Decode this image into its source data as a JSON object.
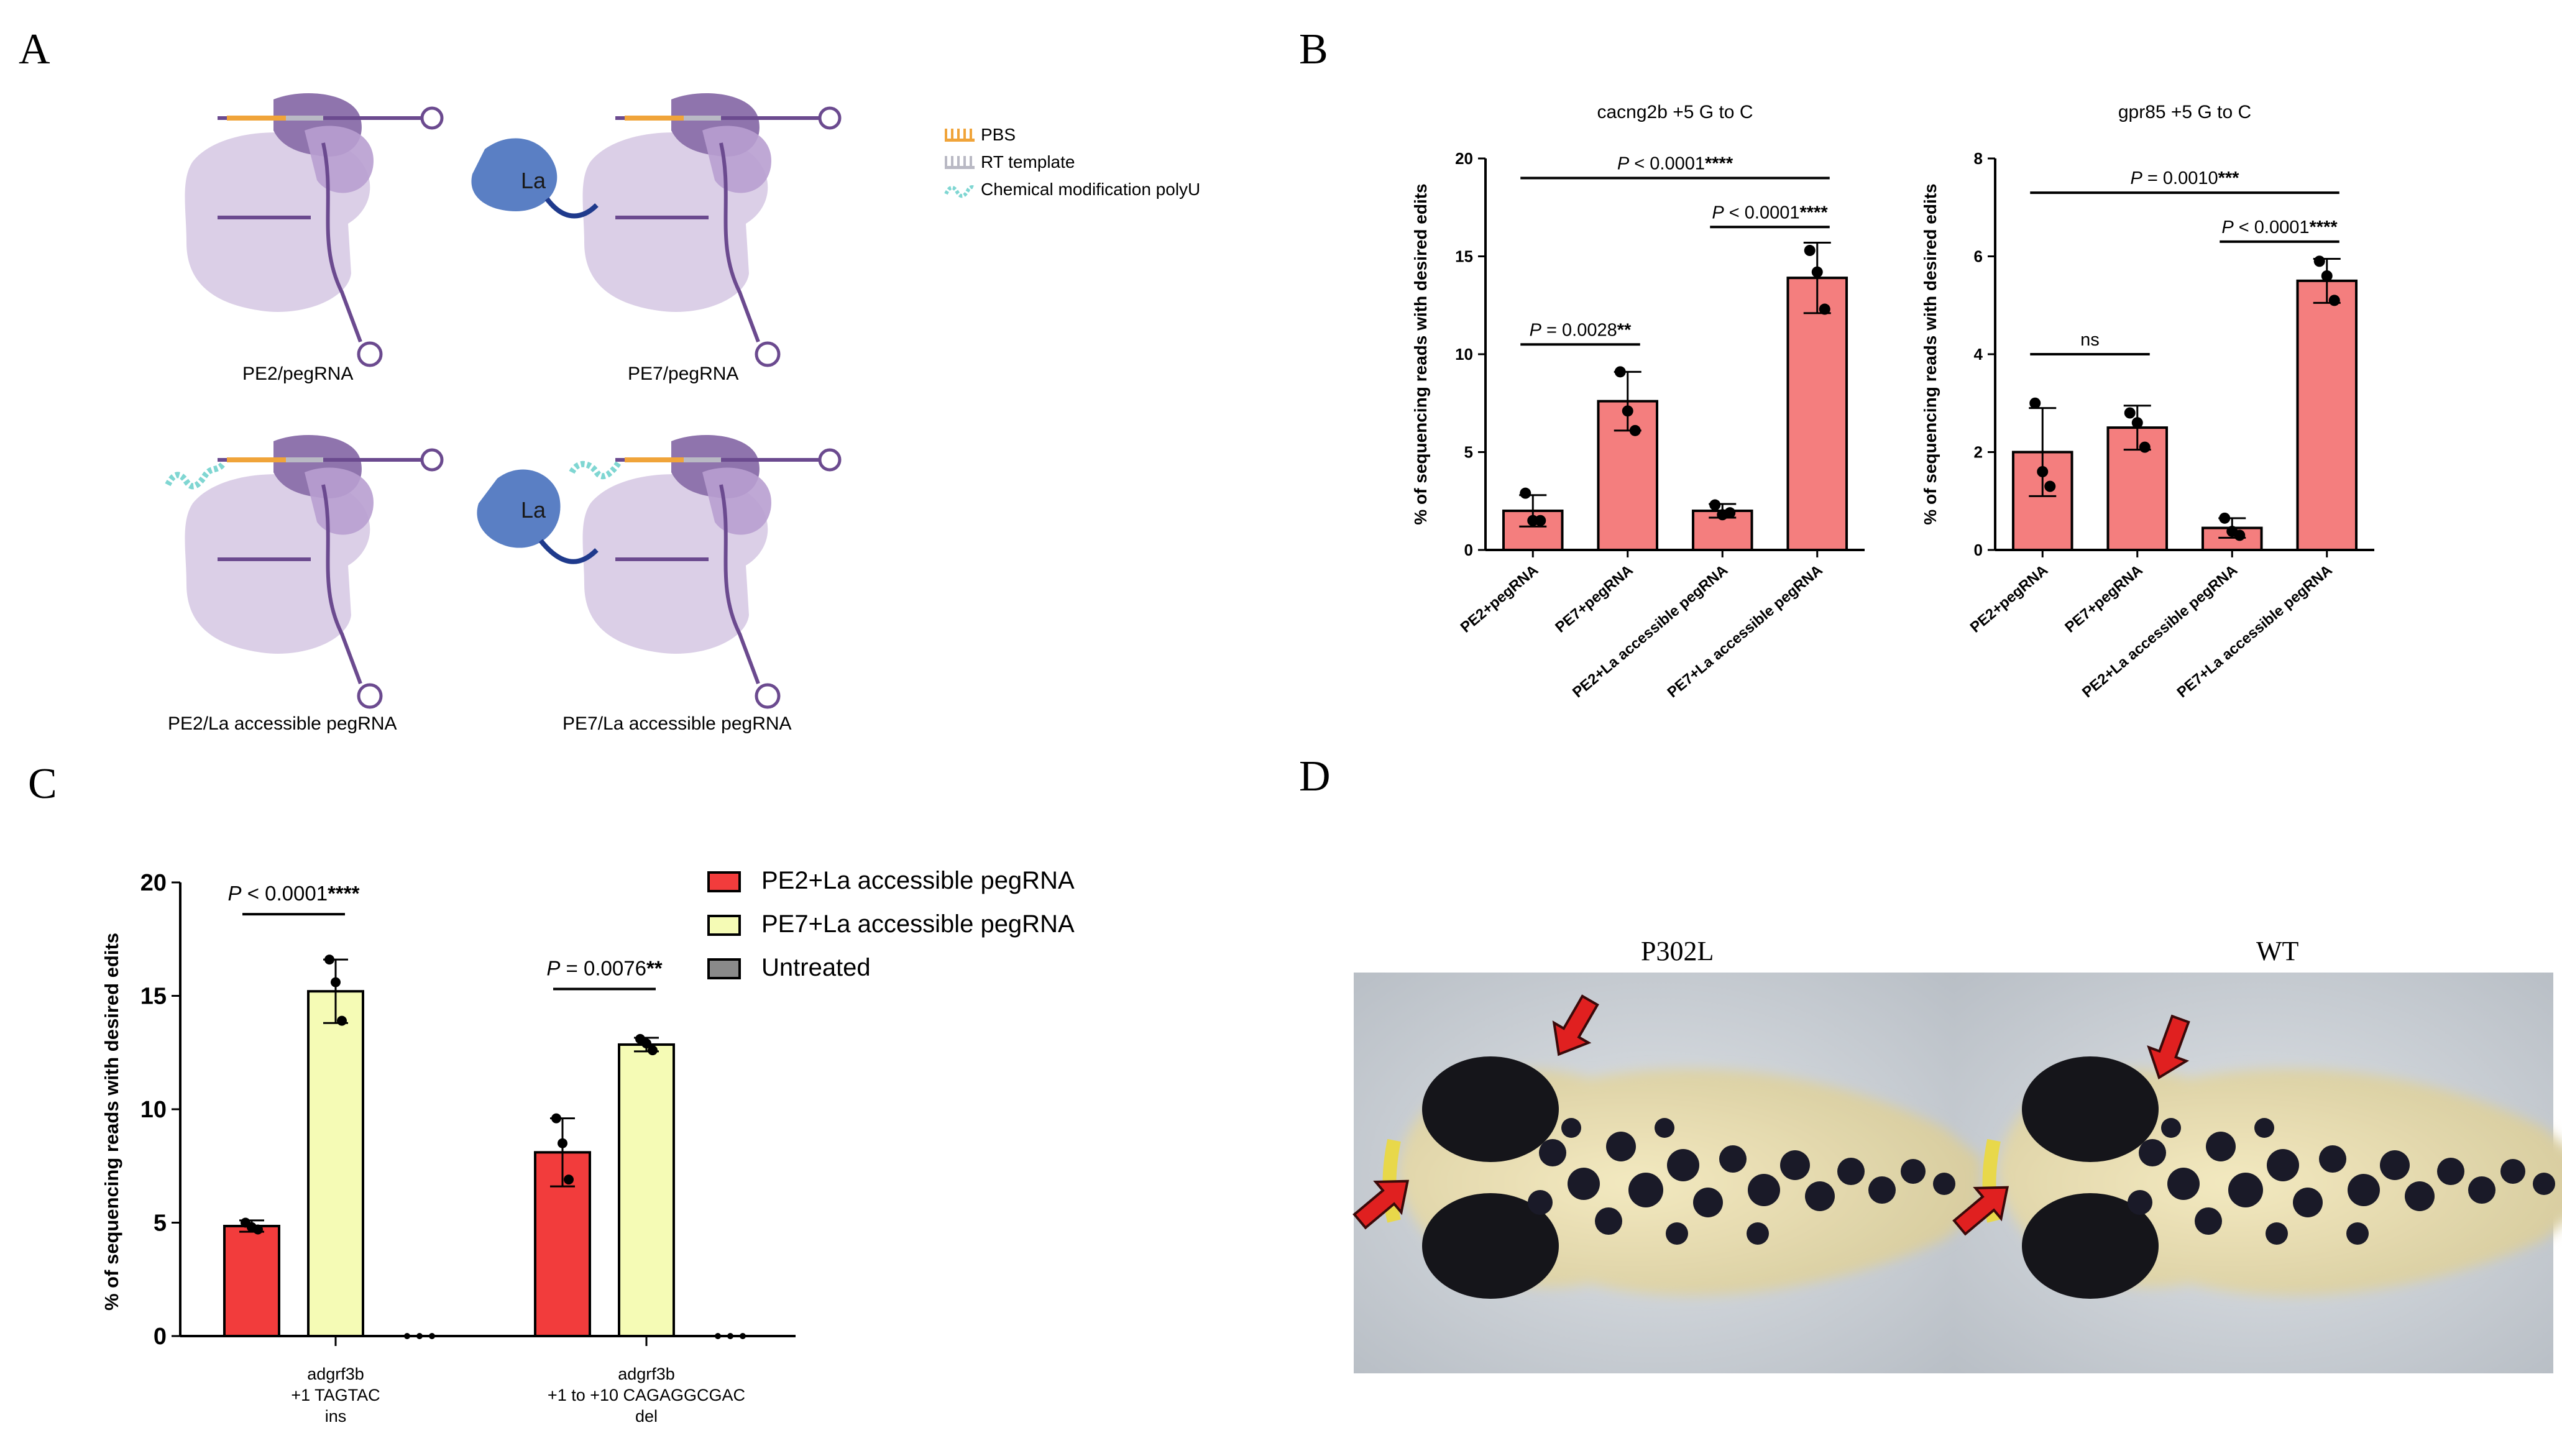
{
  "panels": {
    "A": {
      "letter": "A",
      "captions": [
        "PE2/pegRNA",
        "PE7/pegRNA",
        "PE2/La accessible pegRNA",
        "PE7/La accessible pegRNA"
      ],
      "protein_label": "La",
      "legend": [
        {
          "label": "PBS",
          "color": "#f0a43a"
        },
        {
          "label": "RT template",
          "color": "#b9b9c4"
        },
        {
          "label": "Chemical modification polyU",
          "color": "#7fd6d2"
        }
      ]
    },
    "B": {
      "letter": "B"
    },
    "C": {
      "letter": "C"
    },
    "D": {
      "letter": "D",
      "labels": [
        "P302L",
        "WT"
      ]
    }
  },
  "colors": {
    "bar_salmon": "#f47e7e",
    "bar_red": "#f23c3c",
    "bar_yellow": "#f5fbb5",
    "bar_grey": "#8a8a8a",
    "cas_purple": "#c9b6d9",
    "cas_dark": "#8f74ad",
    "la_blue": "#5a7fc4",
    "linker_navy": "#1f3a8c"
  },
  "chart_data": [
    {
      "type": "bar",
      "title": "cacng2b +5 G to C",
      "ylabel": "% of sequencing reads with desired edits",
      "categories": [
        "PE2+pegRNA",
        "PE7+pegRNA",
        "PE2+La accessible pegRNA",
        "PE7+La accessible pegRNA"
      ],
      "values": [
        2.0,
        7.6,
        2.0,
        13.9
      ],
      "errors": [
        0.8,
        1.5,
        0.35,
        1.8
      ],
      "points": [
        [
          2.9,
          1.5,
          1.5
        ],
        [
          9.1,
          7.1,
          6.1
        ],
        [
          2.3,
          1.8,
          1.9
        ],
        [
          15.3,
          14.2,
          12.3
        ]
      ],
      "ylim": [
        0,
        20
      ],
      "yticks": [
        0,
        5,
        10,
        15,
        20
      ],
      "brackets": [
        {
          "from": 0,
          "to": 1,
          "level": 10.5,
          "label_p": "P",
          "label_rest": " = 0.0028",
          "stars": "**"
        },
        {
          "from": 2,
          "to": 3,
          "level": 16.5,
          "label_p": "P",
          "label_rest": " < 0.0001",
          "stars": "****"
        },
        {
          "from": 0,
          "to": 3,
          "level": 19.0,
          "label_p": "P",
          "label_rest": " < 0.0001",
          "stars": "****"
        }
      ]
    },
    {
      "type": "bar",
      "title": "gpr85 +5 G to C",
      "ylabel": "% of sequencing reads with desired edits",
      "categories": [
        "PE2+pegRNA",
        "PE7+pegRNA",
        "PE2+La accessible pegRNA",
        "PE7+La accessible pegRNA"
      ],
      "values": [
        2.0,
        2.5,
        0.45,
        5.5
      ],
      "errors": [
        0.9,
        0.45,
        0.2,
        0.45
      ],
      "points": [
        [
          3.0,
          1.6,
          1.3
        ],
        [
          2.8,
          2.6,
          2.1
        ],
        [
          0.65,
          0.38,
          0.3
        ],
        [
          5.9,
          5.6,
          5.1
        ]
      ],
      "ylim": [
        0,
        8
      ],
      "yticks": [
        0,
        2,
        4,
        6,
        8
      ],
      "brackets": [
        {
          "from": 0,
          "to": 1,
          "level": 4.0,
          "label_p": "",
          "label_rest": "ns",
          "stars": ""
        },
        {
          "from": 2,
          "to": 3,
          "level": 6.3,
          "label_p": "P",
          "label_rest": " < 0.0001",
          "stars": "****"
        },
        {
          "from": 0,
          "to": 3,
          "level": 7.3,
          "label_p": "P",
          "label_rest": " = 0.0010",
          "stars": "***"
        }
      ]
    },
    {
      "type": "bar",
      "title": "",
      "ylabel": "% of sequencing reads with desired edits",
      "groups": [
        [
          "adgrf3b",
          "+1 TAGTAC",
          "ins"
        ],
        [
          "adgrf3b",
          "+1 to +10 CAGAGGCGAC",
          "del"
        ]
      ],
      "series": [
        {
          "name": "PE2+La accessible pegRNA",
          "values": [
            4.85,
            8.1
          ],
          "errors": [
            0.25,
            1.5
          ],
          "points": [
            [
              5.0,
              4.8,
              4.7
            ],
            [
              9.6,
              8.5,
              6.9
            ]
          ]
        },
        {
          "name": "PE7+La accessible pegRNA",
          "values": [
            15.2,
            12.85
          ],
          "errors": [
            1.4,
            0.3
          ],
          "points": [
            [
              16.6,
              15.6,
              13.9
            ],
            [
              13.1,
              12.9,
              12.6
            ]
          ]
        },
        {
          "name": "Untreated",
          "values": [
            0,
            0
          ],
          "errors": [
            0,
            0
          ],
          "points": [
            [
              0,
              0,
              0
            ],
            [
              0,
              0,
              0
            ]
          ]
        }
      ],
      "ylim": [
        0,
        20
      ],
      "yticks": [
        0,
        5,
        10,
        15,
        20
      ],
      "legend_position": "top-right",
      "brackets": [
        {
          "group": 0,
          "from": 0,
          "to": 1,
          "level": 18.6,
          "label_p": "P",
          "label_rest": " < 0.0001",
          "stars": "****"
        },
        {
          "group": 1,
          "from": 0,
          "to": 1,
          "level": 15.3,
          "label_p": "P",
          "label_rest": " = 0.0076",
          "stars": "**"
        }
      ]
    }
  ]
}
